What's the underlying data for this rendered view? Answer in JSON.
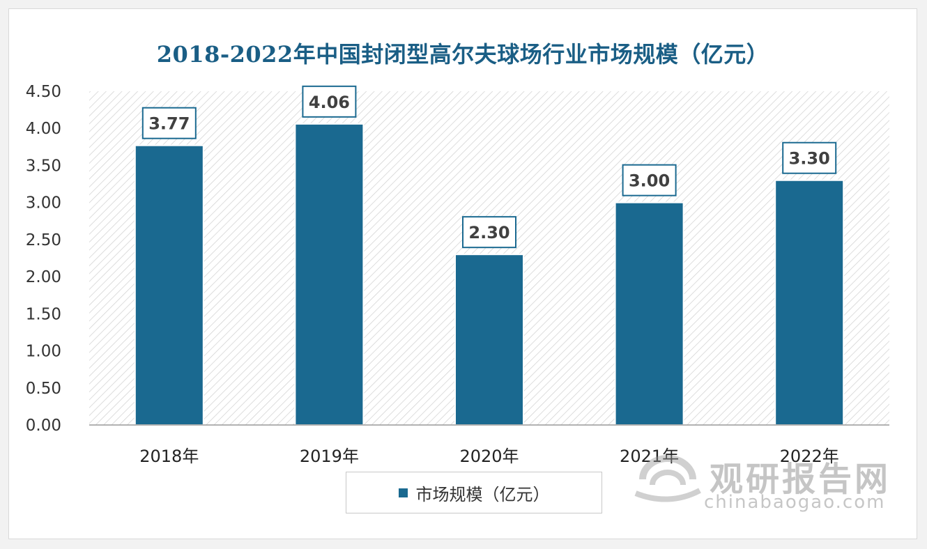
{
  "chart_data": {
    "type": "bar",
    "title": "2018-2022年中国封闭型高尔夫球场行业市场规模（亿元）",
    "categories": [
      "2018年",
      "2019年",
      "2020年",
      "2021年",
      "2022年"
    ],
    "series": [
      {
        "name": "市场规模（亿元）",
        "values": [
          3.77,
          4.06,
          2.3,
          3.0,
          3.3
        ]
      }
    ],
    "data_labels": [
      "3.77",
      "4.06",
      "2.30",
      "3.00",
      "3.30"
    ],
    "y_ticks": [
      "0.00",
      "0.50",
      "1.00",
      "1.50",
      "2.00",
      "2.50",
      "3.00",
      "3.50",
      "4.00",
      "4.50"
    ],
    "ylim": [
      0,
      4.5
    ],
    "xlabel": "",
    "ylabel": "",
    "legend_position": "bottom",
    "grid": false,
    "bar_color": "#1a6990"
  },
  "watermark": {
    "brand_cn": "观研报告网",
    "brand_en": "chinabaogao.com"
  }
}
